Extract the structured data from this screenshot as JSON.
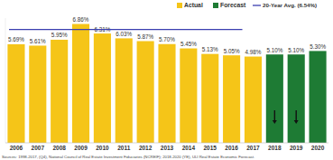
{
  "chart_data": {
    "type": "bar",
    "categories": [
      "2006",
      "2007",
      "2008",
      "2009",
      "2010",
      "2011",
      "2012",
      "2013",
      "2014",
      "2015",
      "2016",
      "2017",
      "2018",
      "2019",
      "2020"
    ],
    "series": [
      {
        "name": "Actual",
        "color": "#f5c518",
        "values": [
          5.69,
          5.61,
          5.95,
          6.86,
          6.31,
          6.03,
          5.87,
          5.7,
          5.45,
          5.13,
          5.05,
          4.98,
          null,
          null,
          null
        ],
        "value_labels": [
          "5.69%",
          "5.61%",
          "5.95%",
          "6.86%",
          "6.31%",
          "6.03%",
          "5.87%",
          "5.70%",
          "5.45%",
          "5.13%",
          "5.05%",
          "4.98%",
          null,
          null,
          null
        ]
      },
      {
        "name": "Forecast",
        "color": "#1e7b34",
        "values": [
          null,
          null,
          null,
          null,
          null,
          null,
          null,
          null,
          null,
          null,
          null,
          null,
          5.1,
          5.1,
          5.3
        ],
        "value_labels": [
          null,
          null,
          null,
          null,
          null,
          null,
          null,
          null,
          null,
          null,
          null,
          null,
          "5.10%",
          "5.10%",
          "5.30%"
        ]
      }
    ],
    "average": {
      "value": 6.54,
      "label": "20-Year Avg. (6.54%)",
      "color": "#3b3fb0"
    },
    "ylim": [
      0,
      7.2
    ],
    "data_labels": true,
    "tick_labels": "x",
    "grid": false,
    "legend": "top-right",
    "source": "Sources: 1998-2017, (Q4), National Council of Real Estate Investment Fiduciaries (NCREIF); 2018-2020 (YE), ULI Real Estate Economic Forecast."
  }
}
